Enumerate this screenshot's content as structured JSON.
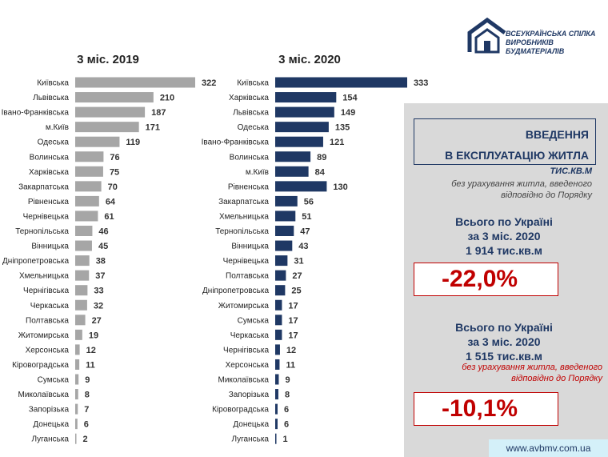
{
  "logo": {
    "line1": "ВСЕУКРАЇНСЬКА СПІЛКА",
    "line2": "ВИРОБНИКІВ БУДМАТЕРІАЛІВ",
    "icon": "house-logo-icon"
  },
  "side": {
    "title_line1": "ВВЕДЕННЯ",
    "title_line2": "В ЕКСПЛУАТАЦІЮ ЖИТЛА",
    "unit": "ТИС.КВ.М",
    "note1_line1": "без урахування житла, введеного",
    "note1_line2": "відповідно до Порядку",
    "total1_line1": "Всього по Україні",
    "total1_line2": "за 3 міс. 2020",
    "total1_line3": "1 914 тис.кв.м",
    "pct1": "-22,0%",
    "total2_line1": "Всього по Україні",
    "total2_line2": "за 3 міс. 2020",
    "total2_line3": "1 515 тис.кв.м",
    "note2_line1": "без урахування житла, введеного",
    "note2_line2": "відповідно до Порядку",
    "pct2": "-10,1%",
    "url": "www.avbmv.com.ua"
  },
  "colors": {
    "bar_2019": "#a6a6a6",
    "bar_2020": "#1f3864",
    "accent_red": "#c00000",
    "navy": "#1f3864",
    "panel": "#d9d9d9"
  },
  "chart_data": [
    {
      "type": "bar",
      "orientation": "horizontal",
      "title": "3 міс. 2019",
      "categories": [
        "Київська",
        "Львівська",
        "Івано-Франківська",
        "м.Київ",
        "Одеська",
        "Волинська",
        "Харківська",
        "Закарпатська",
        "Рівненська",
        "Чернівецька",
        "Тернопільська",
        "Вінницька",
        "Дніпропетровська",
        "Хмельницька",
        "Чернігівська",
        "Черкаська",
        "Полтавська",
        "Житомирська",
        "Херсонська",
        "Кіровоградська",
        "Сумська",
        "Миколаївська",
        "Запорізька",
        "Донецька",
        "Луганська"
      ],
      "values": [
        322,
        210,
        187,
        171,
        119,
        76,
        75,
        70,
        64,
        61,
        46,
        45,
        38,
        37,
        33,
        32,
        27,
        19,
        12,
        11,
        9,
        8,
        7,
        6,
        2
      ],
      "xlim": [
        0,
        322
      ],
      "grid": false
    },
    {
      "type": "bar",
      "orientation": "horizontal",
      "title": "3 міс. 2020",
      "categories": [
        "Київська",
        "Харківська",
        "Львівська",
        "Одеська",
        "Івано-Франківська",
        "Волинська",
        "м.Київ",
        "Рівненська",
        "Закарпатська",
        "Хмельницька",
        "Тернопільська",
        "Вінницька",
        "Чернівецька",
        "Полтавська",
        "Дніпропетровська",
        "Житомирська",
        "Сумська",
        "Черкаська",
        "Чернігівська",
        "Херсонська",
        "Миколаївська",
        "Запорізька",
        "Кіровоградська",
        "Донецька",
        "Луганська"
      ],
      "values": [
        333,
        154,
        149,
        135,
        121,
        89,
        84,
        130,
        56,
        51,
        47,
        43,
        31,
        27,
        25,
        17,
        17,
        17,
        12,
        11,
        9,
        8,
        6,
        6,
        1
      ],
      "xlim": [
        0,
        333
      ],
      "grid": false
    }
  ]
}
